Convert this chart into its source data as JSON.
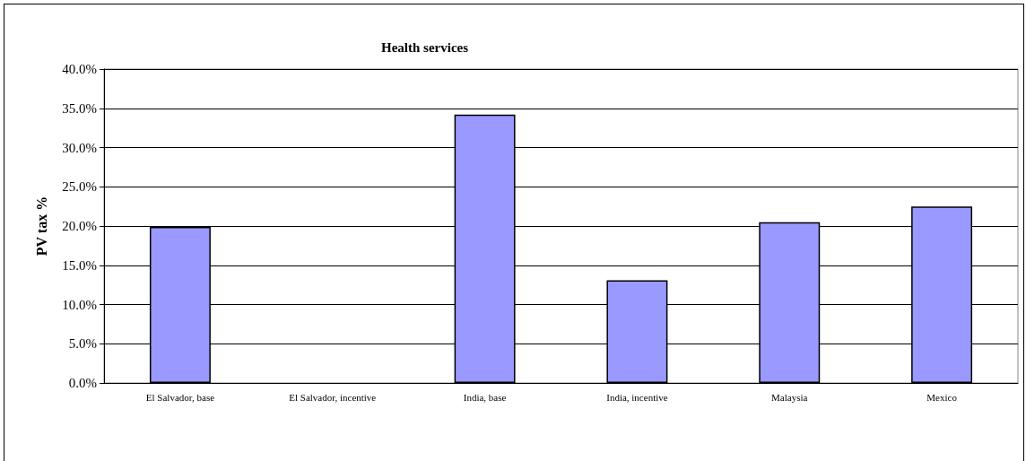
{
  "chart_data": {
    "type": "bar",
    "title": "Health services",
    "ylabel": "PV tax %",
    "categories": [
      "El Salvador, base",
      "El Salvador, incentive",
      "India, base",
      "India, incentive",
      "Malaysia",
      "Mexico"
    ],
    "values": [
      19.9,
      null,
      34.2,
      13.1,
      20.5,
      22.5
    ],
    "color": "#9999ff",
    "ylim": [
      0,
      40
    ],
    "yticks": [
      {
        "value": 0,
        "label": "0.0%"
      },
      {
        "value": 5,
        "label": "5.0%"
      },
      {
        "value": 10,
        "label": "10.0%"
      },
      {
        "value": 15,
        "label": "15.0%"
      },
      {
        "value": 20,
        "label": "20.0%"
      },
      {
        "value": 25,
        "label": "25.0%"
      },
      {
        "value": 30,
        "label": "30.0%"
      },
      {
        "value": 35,
        "label": "35.0%"
      },
      {
        "value": 40,
        "label": "40.0%"
      }
    ],
    "grid": "y"
  }
}
